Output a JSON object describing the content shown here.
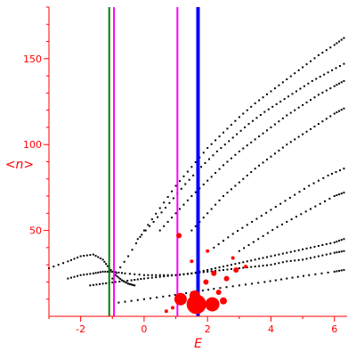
{
  "colors": {
    "axis": "#ff0000",
    "points": "#000000",
    "markers": "#ff0000",
    "line_green": "#008000",
    "line_magenta": "#ff00ff",
    "line_blue": "#0000ff"
  },
  "chart_data": {
    "type": "scatter",
    "xlabel": "E",
    "ylabel": "<n>",
    "xlim": [
      -3.0,
      6.4
    ],
    "ylim": [
      0,
      180
    ],
    "xticks": [
      -2,
      0,
      2,
      4,
      6
    ],
    "yticks": [
      50,
      100,
      150
    ],
    "grid": false,
    "vertical_lines": [
      {
        "x": -1.1,
        "color": "#008000"
      },
      {
        "x": -0.95,
        "color": "#ff00ff"
      },
      {
        "x": 1.05,
        "color": "#ff00ff"
      },
      {
        "x": 1.7,
        "color": "#0000ff"
      }
    ],
    "band_points": [
      {
        "x": [
          -3.0,
          -2.4,
          -2.0,
          -1.6,
          -1.3,
          -1.1,
          -0.9,
          -0.7,
          -0.5,
          -0.3
        ],
        "y": [
          28,
          32,
          35,
          36,
          33,
          28,
          24,
          21,
          19,
          18
        ]
      },
      {
        "x": [
          -2.4,
          -2.0,
          -1.6,
          -1.3,
          -1.0,
          -0.6,
          0.0,
          0.5,
          1.0,
          1.5,
          2.0,
          2.5,
          3.0,
          3.5,
          4.0,
          4.5,
          5.0,
          5.5,
          6.0,
          6.3
        ],
        "y": [
          22,
          24,
          25,
          26,
          26,
          25,
          24,
          24,
          24,
          25,
          26,
          27,
          28,
          29,
          30,
          32,
          33,
          35,
          37,
          38
        ]
      },
      {
        "x": [
          -1.7,
          -1.3,
          -0.9,
          -0.4,
          0.0,
          0.5,
          1.0,
          1.5,
          2.0,
          2.5,
          3.0,
          3.5,
          4.0,
          4.5,
          5.0,
          5.5,
          6.0,
          6.3
        ],
        "y": [
          18,
          19,
          20,
          21,
          22,
          23,
          24,
          25,
          27,
          29,
          31,
          33,
          35,
          37,
          39,
          41,
          43,
          45
        ]
      },
      {
        "x": [
          -1.0,
          -0.5,
          0.0,
          0.5,
          1.0,
          1.5,
          2.0,
          2.5,
          3.0,
          3.5,
          4.0,
          4.5,
          5.0,
          5.5,
          6.0,
          6.3
        ],
        "y": [
          22,
          35,
          50,
          63,
          76,
          87,
          98,
          107,
          116,
          124,
          131,
          138,
          145,
          152,
          158,
          162
        ]
      },
      {
        "x": [
          -0.2,
          0.3,
          0.8,
          1.3,
          1.8,
          2.3,
          2.8,
          3.3,
          3.8,
          4.3,
          4.8,
          5.3,
          5.8,
          6.3
        ],
        "y": [
          45,
          55,
          66,
          77,
          87,
          96,
          104,
          112,
          119,
          125,
          131,
          137,
          142,
          147
        ]
      },
      {
        "x": [
          0.5,
          1.0,
          1.5,
          2.0,
          2.5,
          3.0,
          3.5,
          4.0,
          4.5,
          5.0,
          5.5,
          6.0,
          6.3
        ],
        "y": [
          50,
          60,
          70,
          79,
          88,
          96,
          103,
          110,
          117,
          123,
          129,
          134,
          137
        ]
      },
      {
        "x": [
          1.5,
          2.0,
          2.5,
          3.0,
          3.5,
          4.0,
          4.5,
          5.0,
          5.5,
          6.0,
          6.3
        ],
        "y": [
          50,
          60,
          70,
          78,
          86,
          93,
          100,
          106,
          112,
          118,
          121
        ]
      },
      {
        "x": [
          -0.8,
          0.0,
          0.8,
          1.5,
          2.2,
          3.0,
          3.8,
          4.5,
          5.2,
          6.0,
          6.3
        ],
        "y": [
          8,
          10,
          12,
          14,
          16,
          18,
          20,
          22,
          24,
          26,
          27
        ]
      },
      {
        "x": [
          2.2,
          2.8,
          3.4,
          4.0,
          4.6,
          5.2,
          5.8,
          6.3
        ],
        "y": [
          40,
          48,
          55,
          62,
          69,
          76,
          82,
          86
        ]
      },
      {
        "x": [
          3.0,
          3.6,
          4.2,
          4.8,
          5.4,
          6.0,
          6.3
        ],
        "y": [
          38,
          45,
          52,
          58,
          64,
          70,
          72
        ]
      }
    ],
    "red_markers": [
      {
        "x": 1.1,
        "y": 47,
        "size": 3
      },
      {
        "x": 1.15,
        "y": 10,
        "size": 7
      },
      {
        "x": 1.6,
        "y": 12,
        "size": 6
      },
      {
        "x": 1.65,
        "y": 7,
        "size": 11
      },
      {
        "x": 2.15,
        "y": 7,
        "size": 8
      },
      {
        "x": 2.5,
        "y": 9,
        "size": 4
      },
      {
        "x": 1.95,
        "y": 20,
        "size": 3
      },
      {
        "x": 2.2,
        "y": 25,
        "size": 3
      },
      {
        "x": 2.6,
        "y": 22,
        "size": 3
      },
      {
        "x": 2.9,
        "y": 27,
        "size": 3
      },
      {
        "x": 2.35,
        "y": 14,
        "size": 3
      },
      {
        "x": 1.5,
        "y": 32,
        "size": 2
      },
      {
        "x": 2.8,
        "y": 34,
        "size": 2
      },
      {
        "x": 3.2,
        "y": 29,
        "size": 2
      },
      {
        "x": 2.0,
        "y": 38,
        "size": 2
      },
      {
        "x": 0.7,
        "y": 3,
        "size": 2
      },
      {
        "x": 0.9,
        "y": 5,
        "size": 2
      }
    ]
  }
}
